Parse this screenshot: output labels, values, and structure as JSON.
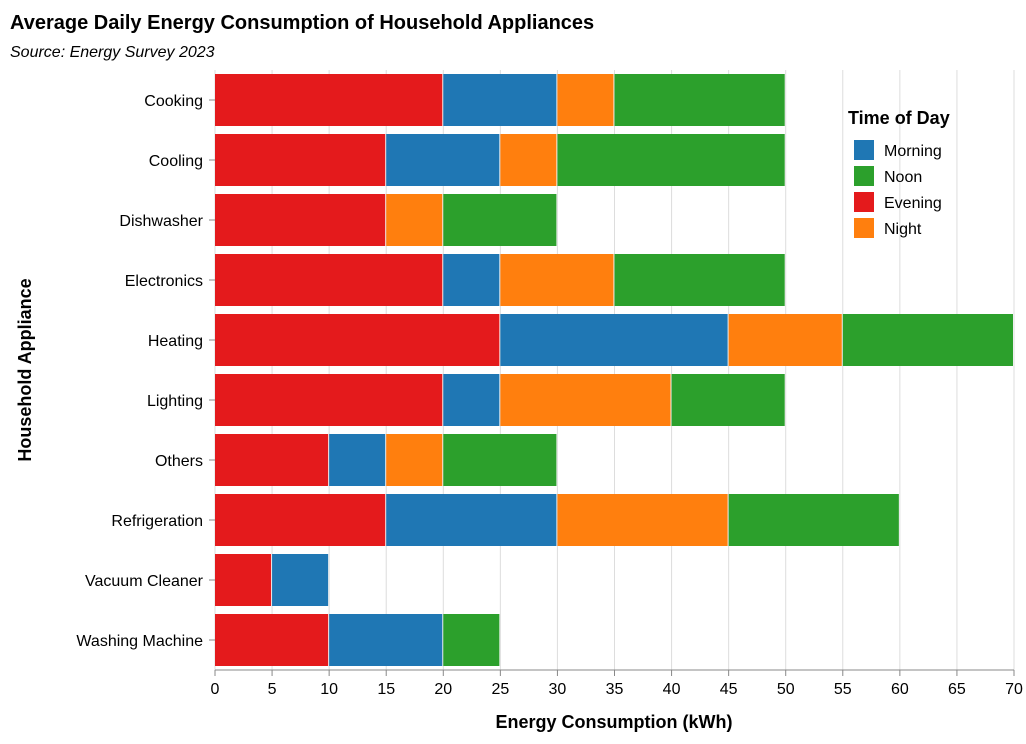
{
  "chart_data": {
    "type": "bar",
    "orientation": "horizontal-stacked",
    "title": "Average Daily Energy Consumption of Household Appliances",
    "subtitle": "Source: Energy Survey 2023",
    "xlabel": "Energy Consumption (kWh)",
    "ylabel": "Household Appliance",
    "xlim": [
      0,
      70
    ],
    "x_ticks": [
      0,
      5,
      10,
      15,
      20,
      25,
      30,
      35,
      40,
      45,
      50,
      55,
      60,
      65,
      70
    ],
    "grid": true,
    "legend": {
      "title": "Time of Day",
      "placement": "top-right",
      "entries": [
        "Morning",
        "Noon",
        "Evening",
        "Night"
      ]
    },
    "colors": {
      "Morning": "#1f77b4",
      "Noon": "#2ca02c",
      "Evening": "#e41a1c",
      "Night": "#ff7f0e"
    },
    "stack_order": [
      "Evening",
      "Morning",
      "Night",
      "Noon"
    ],
    "categories": [
      "Cooking",
      "Cooling",
      "Dishwasher",
      "Electronics",
      "Heating",
      "Lighting",
      "Others",
      "Refrigeration",
      "Vacuum Cleaner",
      "Washing Machine"
    ],
    "series": [
      {
        "name": "Evening",
        "values": [
          20,
          15,
          15,
          20,
          25,
          20,
          10,
          15,
          5,
          10
        ]
      },
      {
        "name": "Morning",
        "values": [
          10,
          10,
          0,
          5,
          20,
          5,
          5,
          15,
          5,
          10
        ]
      },
      {
        "name": "Night",
        "values": [
          5,
          5,
          5,
          10,
          10,
          15,
          5,
          15,
          0,
          0
        ]
      },
      {
        "name": "Noon",
        "values": [
          15,
          20,
          10,
          15,
          15,
          10,
          10,
          15,
          0,
          5
        ]
      }
    ]
  }
}
